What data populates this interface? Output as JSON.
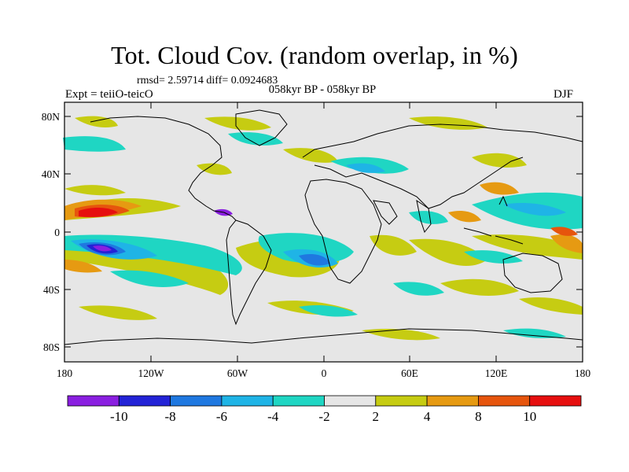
{
  "title": "Tot. Cloud Cov. (random overlap, in %)",
  "stats": "rmsd= 2.59714 diff= 0.0924683",
  "subtitle": "058kyr BP - 058kyr BP",
  "expt": "Expt = teiiO-teicO",
  "season": "DJF",
  "lat_ticks": [
    "80N",
    "40N",
    "0",
    "40S",
    "80S"
  ],
  "lon_ticks": [
    "180",
    "120W",
    "60W",
    "0",
    "60E",
    "120E",
    "180"
  ],
  "colorbar": {
    "levels": [
      "-10",
      "-8",
      "-6",
      "-4",
      "-2",
      "2",
      "4",
      "8",
      "10"
    ],
    "colors": [
      "#8a1fe0",
      "#2323d6",
      "#1f78e0",
      "#1fb4e6",
      "#1fd6c3",
      "#e6e6e6",
      "#c6cc12",
      "#e69a12",
      "#e6550d",
      "#e60f0f"
    ]
  },
  "colors": {
    "background": "#e6e6e6",
    "coast": "#000000"
  }
}
